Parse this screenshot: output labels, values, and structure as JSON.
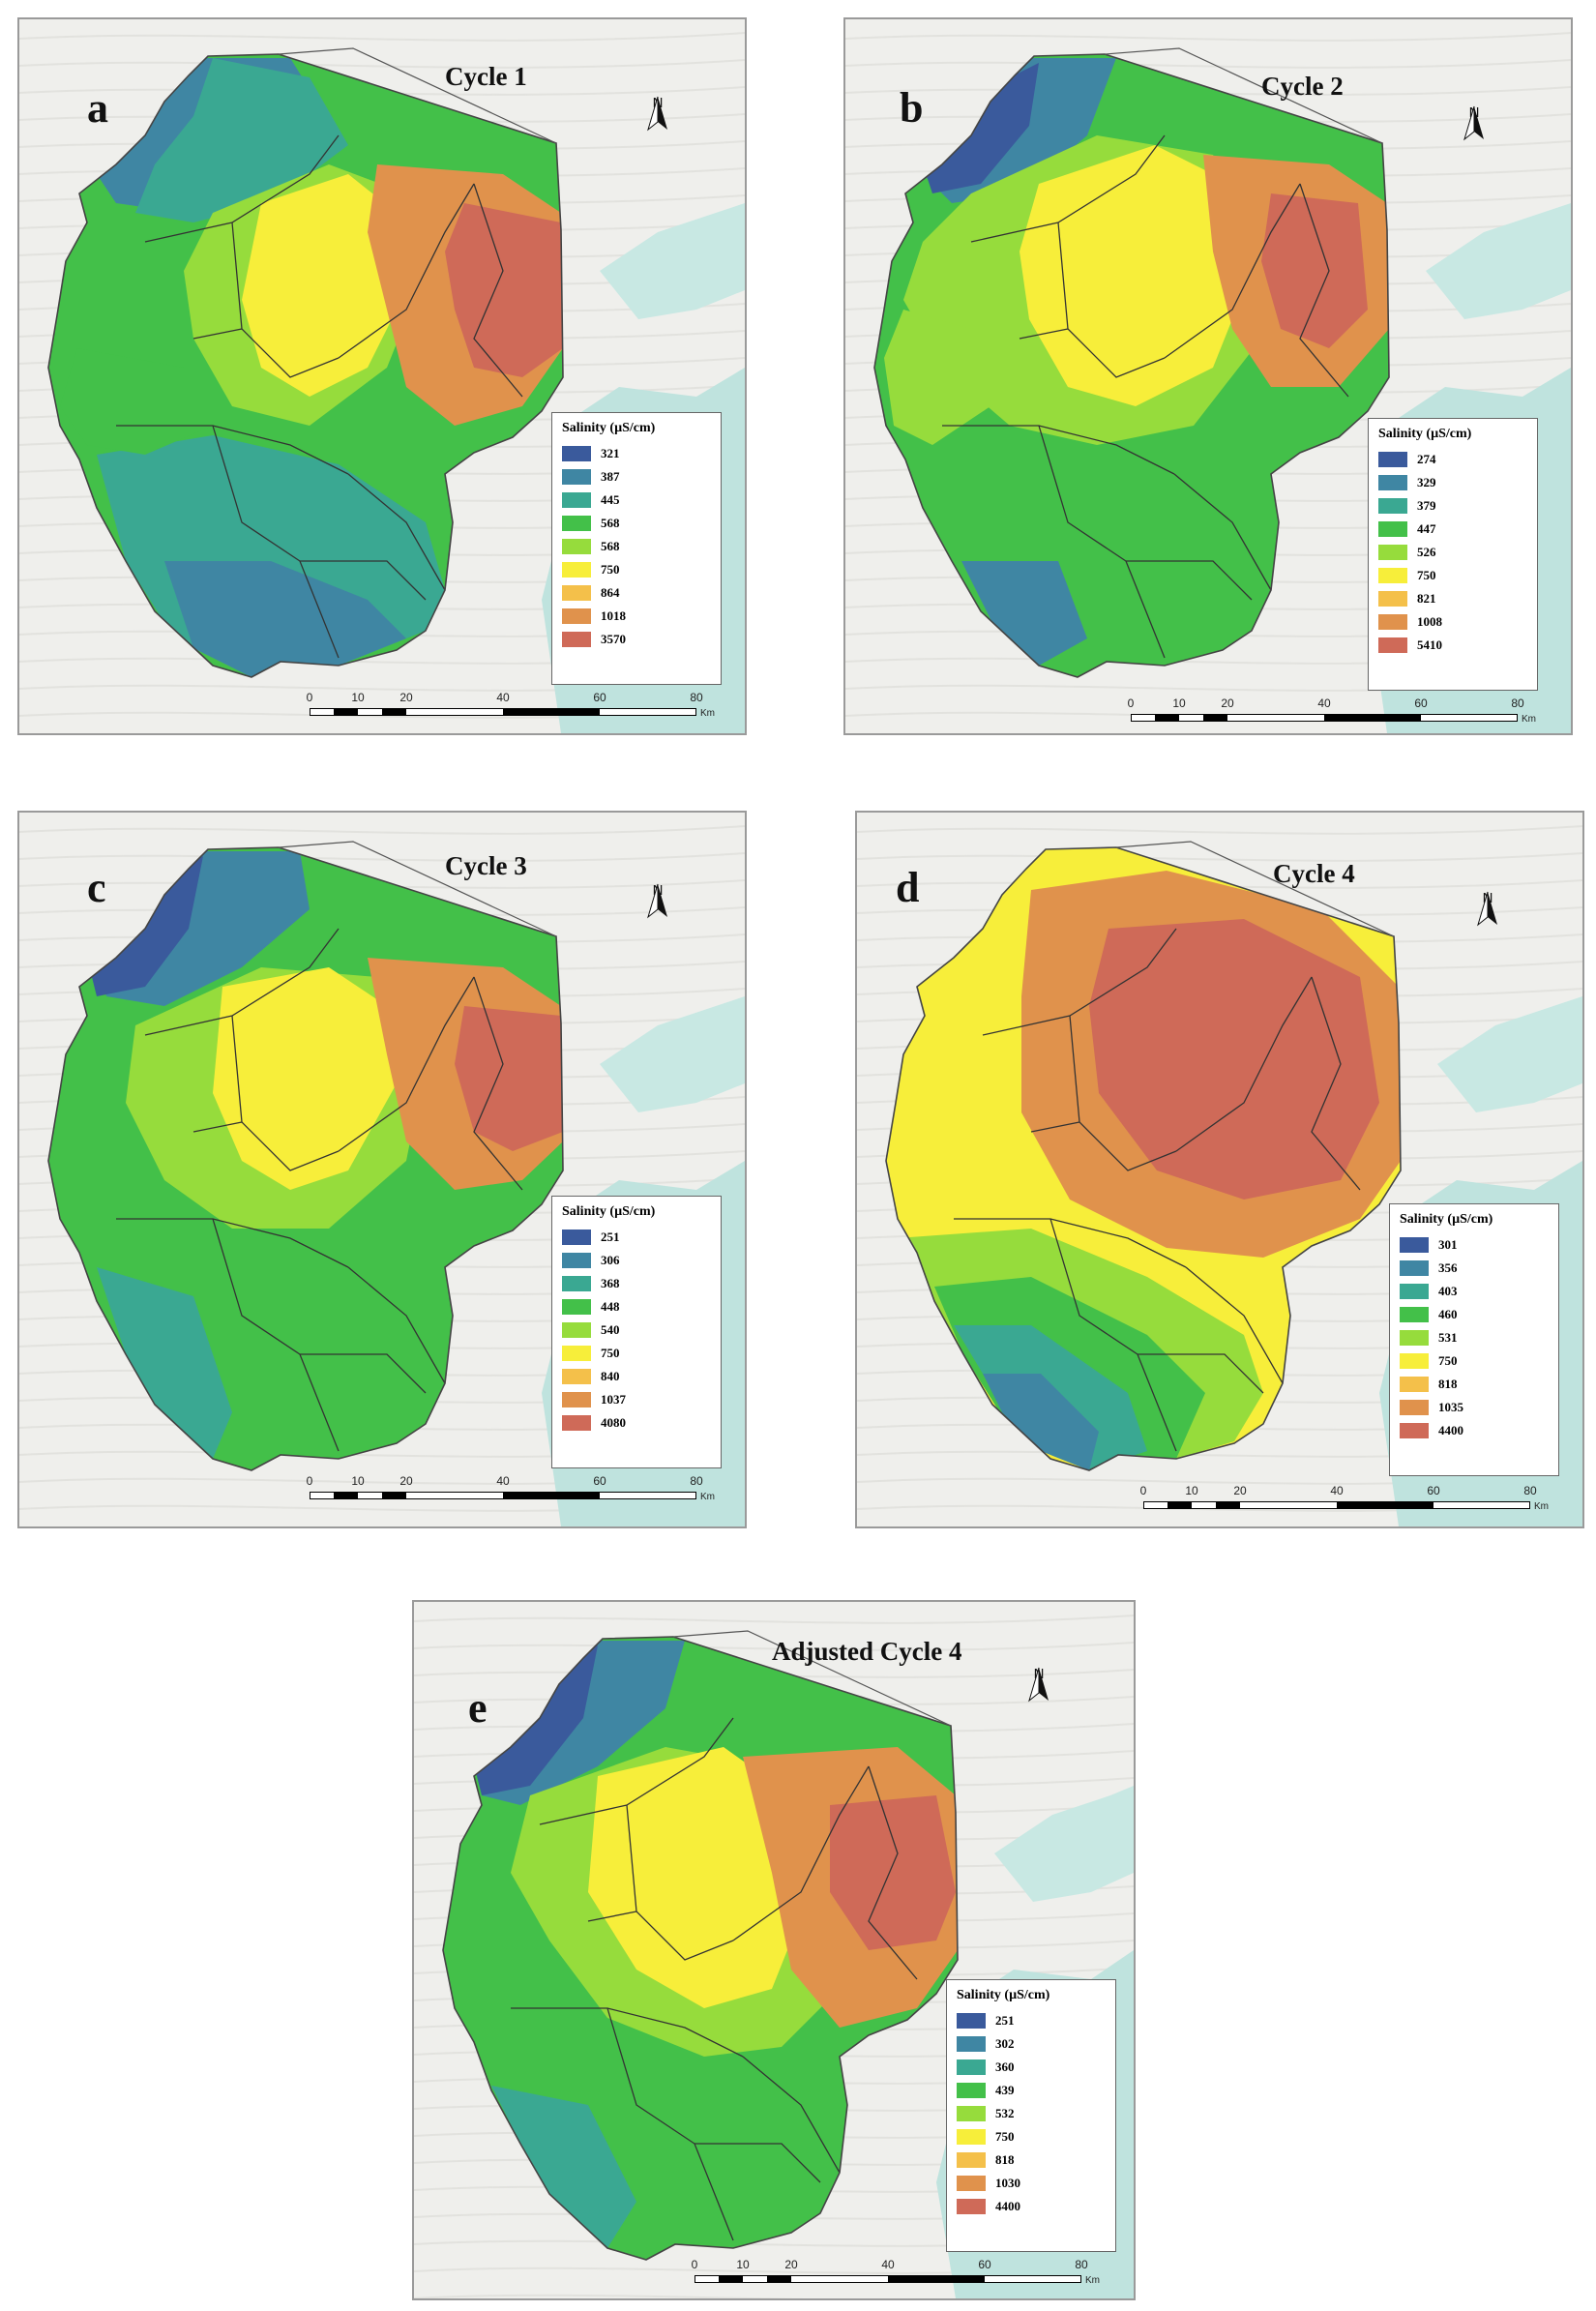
{
  "panels": [
    {
      "id": "a",
      "letter": "a",
      "title": "Cycle 1",
      "legend_title": "Salinity (µS/cm)",
      "legend_values": [
        "321",
        "387",
        "445",
        "568",
        "568",
        "750",
        "864",
        "1018",
        "3570"
      ]
    },
    {
      "id": "b",
      "letter": "b",
      "title": "Cycle 2",
      "legend_title": "Salinity (µS/cm)",
      "legend_values": [
        "274",
        "329",
        "379",
        "447",
        "526",
        "750",
        "821",
        "1008",
        "5410"
      ]
    },
    {
      "id": "c",
      "letter": "c",
      "title": "Cycle 3",
      "legend_title": "Salinity (µS/cm)",
      "legend_values": [
        "251",
        "306",
        "368",
        "448",
        "540",
        "750",
        "840",
        "1037",
        "4080"
      ]
    },
    {
      "id": "d",
      "letter": "d",
      "title": "Cycle 4",
      "legend_title": "Salinity (µS/cm)",
      "legend_values": [
        "301",
        "356",
        "403",
        "460",
        "531",
        "750",
        "818",
        "1035",
        "4400"
      ]
    },
    {
      "id": "e",
      "letter": "e",
      "title": "Adjusted Cycle 4",
      "legend_title": "Salinity (µS/cm)",
      "legend_values": [
        "251",
        "302",
        "360",
        "439",
        "532",
        "750",
        "818",
        "1030",
        "4400"
      ]
    }
  ],
  "legend_colors": [
    "#3a5a9c",
    "#3f86a3",
    "#3aa892",
    "#43c049",
    "#96dc3c",
    "#f7ee3a",
    "#f4c04a",
    "#e0924c",
    "#cf6a58"
  ],
  "north_label": "N",
  "scale_ticks": [
    "0",
    "10",
    "20",
    "40",
    "60",
    "80"
  ],
  "scale_unit": "Km",
  "icons": {
    "north": "north-arrow-icon"
  }
}
